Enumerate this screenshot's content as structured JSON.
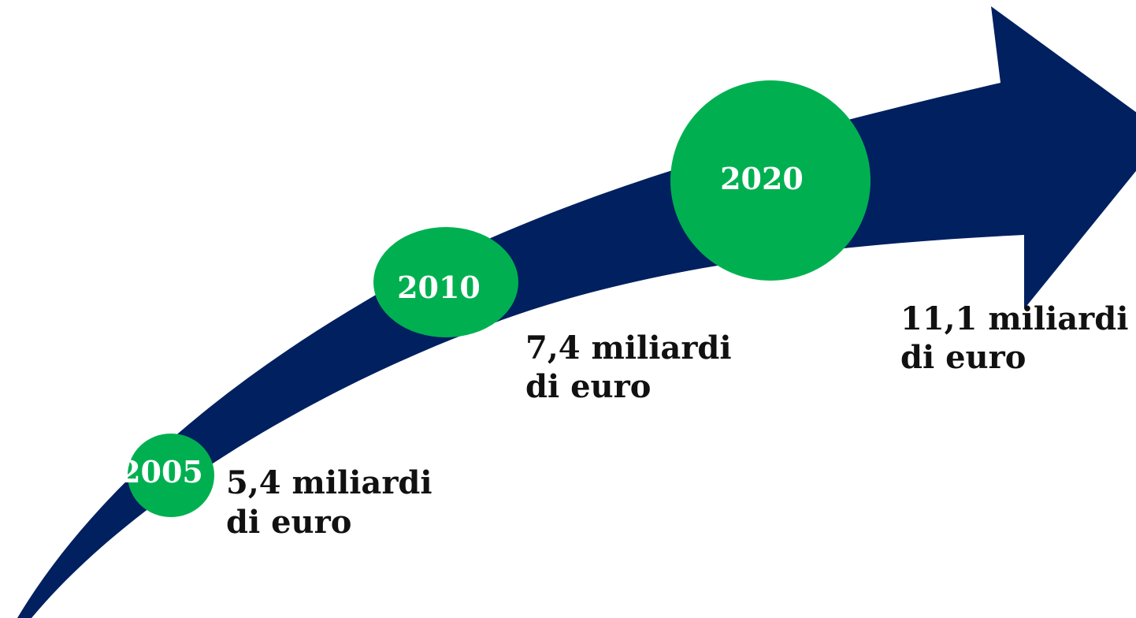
{
  "milestones": [
    {
      "year": "2005",
      "lines": [
        "5,4 miliardi",
        "di euro"
      ]
    },
    {
      "year": "2010",
      "lines": [
        "7,4 miliardi",
        "di euro"
      ]
    },
    {
      "year": "2020",
      "lines": [
        "11,1 miliardi",
        "di euro"
      ]
    }
  ]
}
